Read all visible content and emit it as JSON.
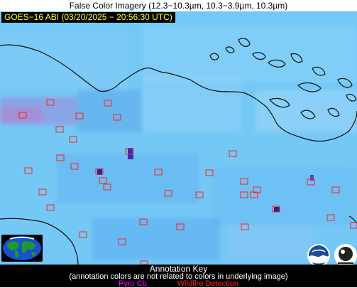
{
  "title": "False Color Imagery (12.3−10.3µm, 10.3−3.9µm, 10.3µm)",
  "satellite_label": "GOES−16 ABI (03/20/2025 − 20:56:30 UTC)",
  "annotation_key": {
    "title": "Annotation Key",
    "note": "(annotation colors are not related to colors in underlying image)",
    "pyro_cb": "Pyro Cb",
    "wildfire": "Wildfire Detection"
  },
  "colors": {
    "background": "#74c8f6",
    "pyro_cb": "#ff00ff",
    "wildfire": "#ff2222",
    "coastline": "#111111"
  },
  "logos": [
    "noaa-logo",
    "cimss-logo"
  ]
}
